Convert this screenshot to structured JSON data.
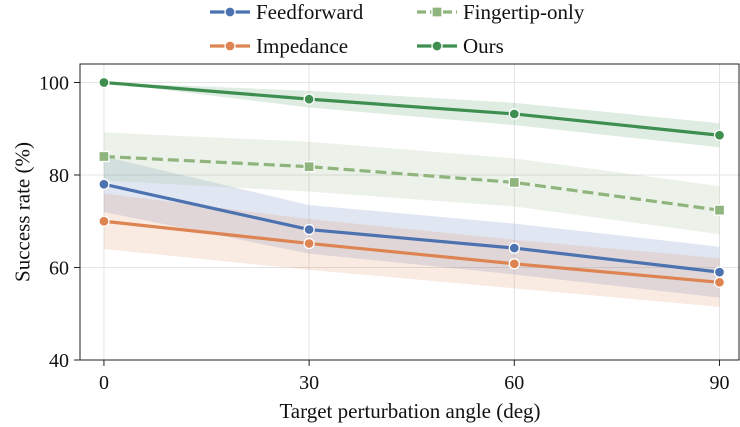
{
  "chart_data": {
    "type": "line",
    "title": "",
    "xlabel": "Target perturbation angle (deg)",
    "ylabel": "Success rate (%)",
    "x": [
      0,
      30,
      60,
      90
    ],
    "xticks": [
      0,
      30,
      60,
      90
    ],
    "yticks": [
      40,
      60,
      80,
      100
    ],
    "xlim": [
      -3.5,
      93
    ],
    "ylim": [
      40,
      104
    ],
    "grid": true,
    "legend_position": "top-center, outside plot, 2 columns",
    "series": [
      {
        "name": "Feedforward",
        "color": "#4c72b0",
        "style": "solid",
        "marker": "circle",
        "values": [
          78,
          68.2,
          64.2,
          59
        ],
        "band_upper": [
          84,
          73.5,
          69.5,
          64.5
        ],
        "band_lower": [
          72,
          63,
          58.5,
          53.5
        ]
      },
      {
        "name": "Impedance",
        "color": "#dd8452",
        "style": "solid",
        "marker": "circle",
        "values": [
          70,
          65.2,
          60.8,
          56.8
        ],
        "band_upper": [
          76,
          70.5,
          66,
          62
        ],
        "band_lower": [
          64,
          59.5,
          55.5,
          51.5
        ]
      },
      {
        "name": "Fingertip-only",
        "color": "#8fb47d",
        "style": "dashed",
        "marker": "square",
        "values": [
          84,
          81.8,
          78.4,
          72.4
        ],
        "band_upper": [
          89.2,
          87.2,
          83.6,
          77.6
        ],
        "band_lower": [
          78.8,
          76.4,
          73.2,
          67.2
        ]
      },
      {
        "name": "Ours",
        "color": "#3e8e50",
        "style": "solid",
        "marker": "circle",
        "values": [
          100,
          96.4,
          93.2,
          88.6
        ],
        "band_upper": [
          100,
          98.2,
          95.6,
          91.2
        ],
        "band_lower": [
          100,
          94.6,
          90.8,
          86
        ]
      }
    ]
  }
}
